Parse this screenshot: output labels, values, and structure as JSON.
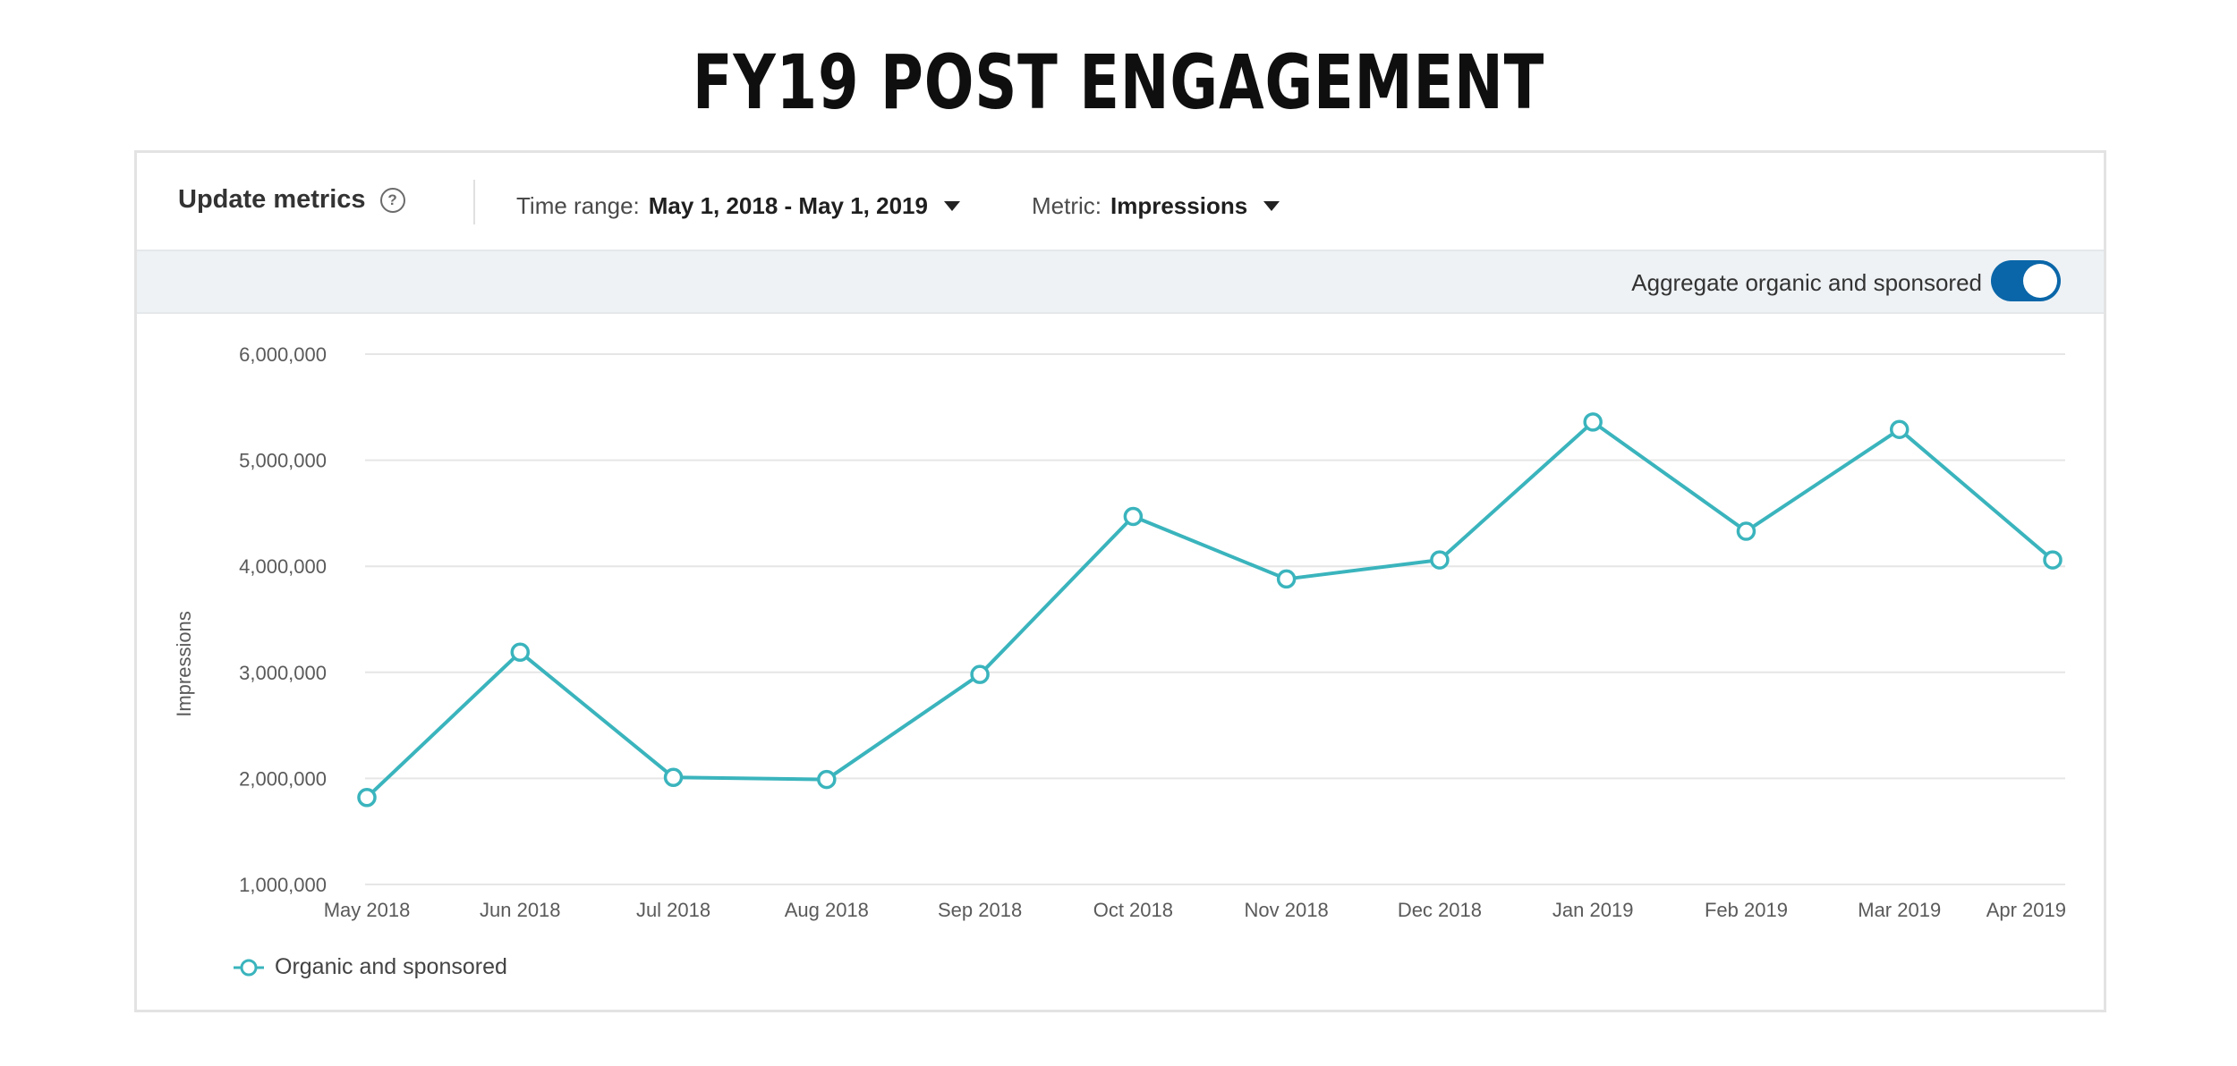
{
  "page": {
    "title": "FY19 POST ENGAGEMENT"
  },
  "toolbar": {
    "update_metrics_label": "Update metrics",
    "help_icon": "question-circle-icon",
    "time_range_label": "Time range:",
    "time_range_value": "May 1, 2018 - May 1, 2019",
    "metric_label": "Metric:",
    "metric_value": "Impressions"
  },
  "subbar": {
    "aggregate_label": "Aggregate organic and sponsored",
    "aggregate_on": true,
    "toggle_color": "#0a66a8"
  },
  "chart_data": {
    "type": "line",
    "categories": [
      "May 2018",
      "Jun 2018",
      "Jul 2018",
      "Aug 2018",
      "Sep 2018",
      "Oct 2018",
      "Nov 2018",
      "Dec 2018",
      "Jan 2019",
      "Feb 2019",
      "Mar 2019",
      "Apr 2019"
    ],
    "series": [
      {
        "name": "Organic and sponsored",
        "color": "#3ab4bd",
        "values": [
          1820000,
          3190000,
          2010000,
          1990000,
          2980000,
          4470000,
          3880000,
          4060000,
          5360000,
          4330000,
          5290000,
          4060000
        ]
      }
    ],
    "ylabel": "Impressions",
    "ylim": [
      1000000,
      6000000
    ],
    "yticks": [
      1000000,
      2000000,
      3000000,
      4000000,
      5000000,
      6000000
    ],
    "ytick_labels": [
      "1,000,000",
      "2,000,000",
      "3,000,000",
      "4,000,000",
      "5,000,000",
      "6,000,000"
    ],
    "grid": true,
    "legend_position": "bottom-left"
  }
}
